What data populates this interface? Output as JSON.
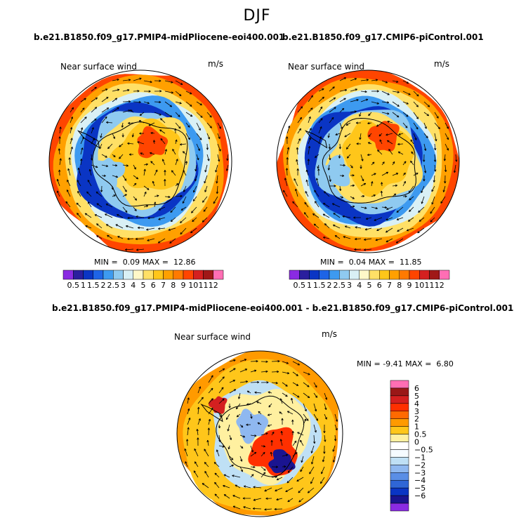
{
  "season": "DJF",
  "colors": {
    "positive_scale": [
      "#8a2be2",
      "#2a1f9e",
      "#0a35c4",
      "#1e64e6",
      "#3d9af0",
      "#8fcaf0",
      "#d9f0f5",
      "#fff8c8",
      "#ffe066",
      "#ffc61a",
      "#ffa000",
      "#ff7a00",
      "#ff4500",
      "#d42020",
      "#a01818",
      "#ff6eb4"
    ],
    "diff_scale": [
      "#8a2be2",
      "#1a1490",
      "#0a35c4",
      "#2f66d6",
      "#5a8ee6",
      "#8fb8f0",
      "#bfe0f5",
      "#f5fbff",
      "#ffffff",
      "#fff0a0",
      "#ffc61a",
      "#ff9a00",
      "#ff6a00",
      "#ff3000",
      "#d42020",
      "#9a1818",
      "#ff6eb4"
    ]
  },
  "chart_data": [
    {
      "type": "heatmap",
      "title": "b.e21.B1850.f09_g17.PMIP4-midPliocene-eoi400.001",
      "variable": "Near surface wind",
      "units": "m/s",
      "min_label": "MIN =",
      "min": "0.09",
      "max_label": "MAX =",
      "max": "12.86",
      "colorbar_ticks": [
        "0.5",
        "1",
        "1.5",
        "2",
        "2.5",
        "3",
        "4",
        "5",
        "6",
        "7",
        "8",
        "9",
        "10",
        "11",
        "12"
      ]
    },
    {
      "type": "heatmap",
      "title": "b.e21.B1850.f09_g17.CMIP6-piControl.001",
      "variable": "Near surface wind",
      "units": "m/s",
      "min_label": "MIN =",
      "min": "0.04",
      "max_label": "MAX =",
      "max": "11.85",
      "colorbar_ticks": [
        "0.5",
        "1",
        "1.5",
        "2",
        "2.5",
        "3",
        "4",
        "5",
        "6",
        "7",
        "8",
        "9",
        "10",
        "11",
        "12"
      ]
    },
    {
      "type": "heatmap",
      "title": "b.e21.B1850.f09_g17.PMIP4-midPliocene-eoi400.001 - b.e21.B1850.f09_g17.CMIP6-piControl.001",
      "variable": "Near surface wind",
      "units": "m/s",
      "min_label": "MIN =",
      "min": "-9.41",
      "max_label": "MAX =",
      "max": "6.80",
      "colorbar_ticks": [
        "6",
        "5",
        "4",
        "3",
        "2",
        "1",
        "0.5",
        "0",
        "−0.5",
        "−1",
        "−2",
        "−3",
        "−4",
        "−5",
        "−6"
      ]
    }
  ]
}
